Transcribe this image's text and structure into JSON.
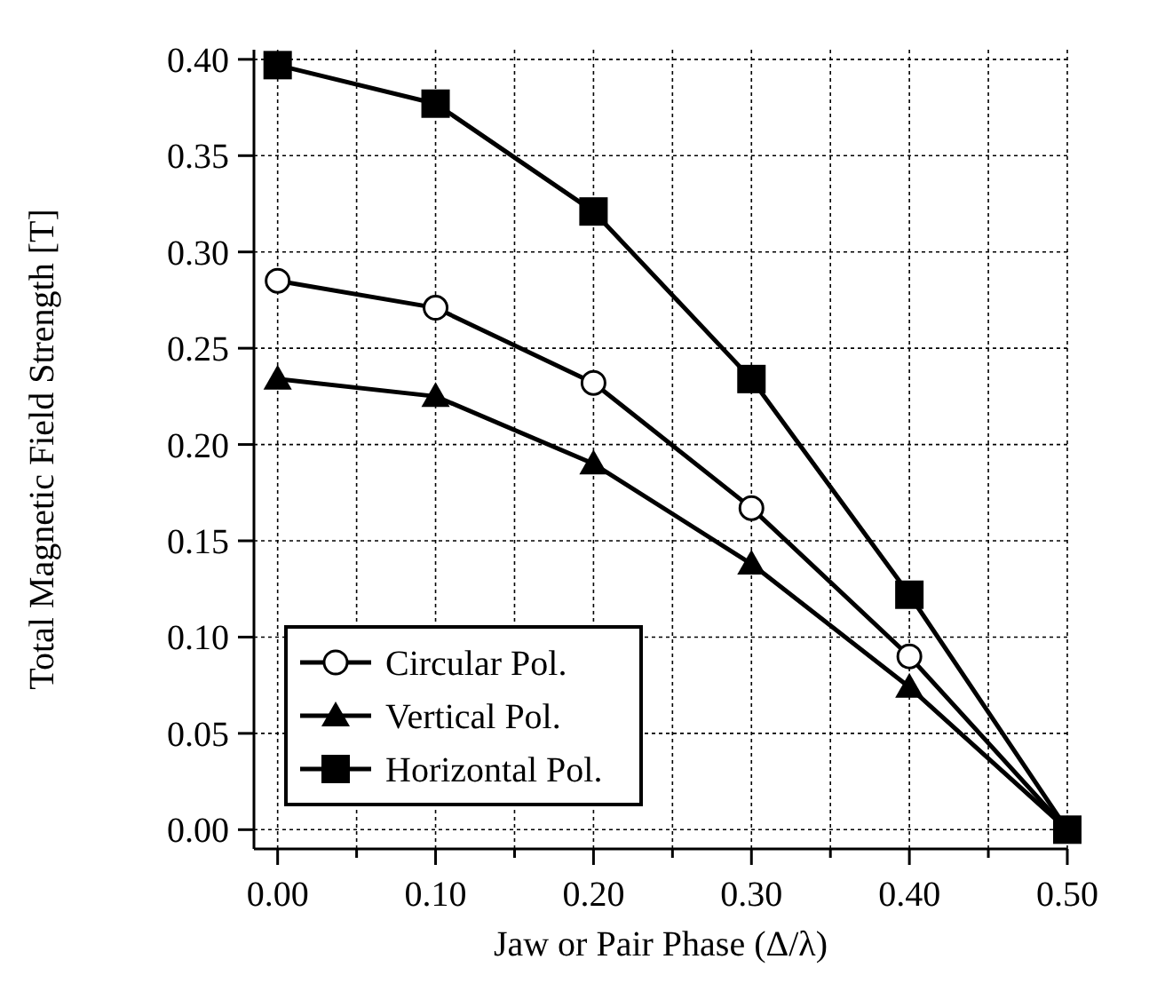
{
  "chart_data": {
    "type": "line",
    "xlabel": "Jaw or Pair Phase (Δ/λ)",
    "ylabel": "Total Magnetic Field Strength [T]",
    "x": [
      0,
      0.1,
      0.2,
      0.3,
      0.4,
      0.5
    ],
    "series": [
      {
        "name": "Circular Pol.",
        "color": "#000000",
        "marker": "circle",
        "values": [
          0.285,
          0.271,
          0.232,
          0.167,
          0.09,
          0.0
        ]
      },
      {
        "name": "Vertical Pol.",
        "color": "#000000",
        "marker": "triangle",
        "values": [
          0.234,
          0.225,
          0.19,
          0.138,
          0.074,
          0.0
        ]
      },
      {
        "name": "Horizontal Pol.",
        "color": "#000000",
        "marker": "square",
        "values": [
          0.397,
          0.377,
          0.321,
          0.234,
          0.122,
          0.0
        ]
      }
    ],
    "xlim": [
      -0.015,
      0.5
    ],
    "ylim": [
      -0.01,
      0.405
    ],
    "xticks": [
      {
        "value": 0,
        "label": "0.00"
      },
      {
        "value": 0.05,
        "label": null
      },
      {
        "value": 0.1,
        "label": "0.10"
      },
      {
        "value": 0.15,
        "label": null
      },
      {
        "value": 0.2,
        "label": "0.20"
      },
      {
        "value": 0.25,
        "label": null
      },
      {
        "value": 0.3,
        "label": "0.30"
      },
      {
        "value": 0.35,
        "label": null
      },
      {
        "value": 0.4,
        "label": "0.40"
      },
      {
        "value": 0.45,
        "label": null
      },
      {
        "value": 0.5,
        "label": "0.50"
      }
    ],
    "yticks": [
      {
        "value": 0,
        "label": "0.00"
      },
      {
        "value": 0.05,
        "label": "0.05"
      },
      {
        "value": 0.1,
        "label": "0.10"
      },
      {
        "value": 0.15,
        "label": "0.15"
      },
      {
        "value": 0.2,
        "label": "0.20"
      },
      {
        "value": 0.25,
        "label": "0.25"
      },
      {
        "value": 0.3,
        "label": "0.30"
      },
      {
        "value": 0.35,
        "label": "0.35"
      },
      {
        "value": 0.4,
        "label": "0.40"
      }
    ],
    "grid": true,
    "legend": "bottom left",
    "line_style": "solid"
  }
}
